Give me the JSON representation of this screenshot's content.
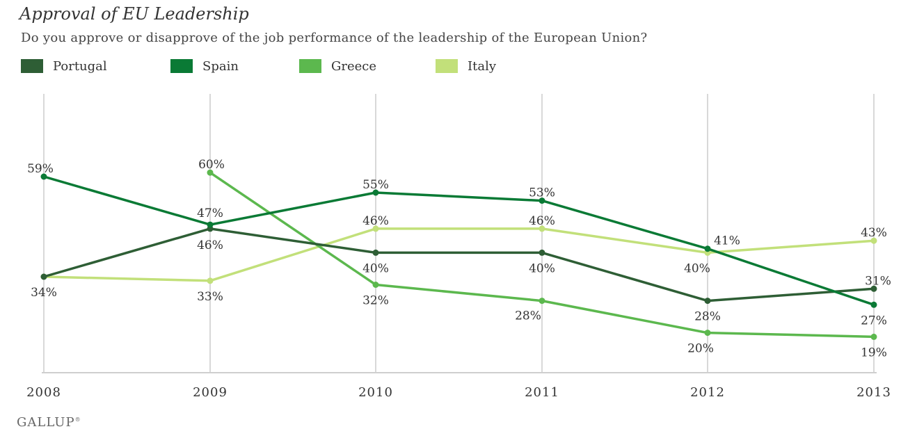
{
  "title": "Approval of EU Leadership",
  "subtitle": "Do you approve or disapprove of the job performance of the leadership of the European Union?",
  "source_logo": "GALLUP",
  "chart_data": {
    "type": "line",
    "title": "Approval of EU Leadership",
    "x": [
      "2008",
      "2009",
      "2010",
      "2011",
      "2012",
      "2013"
    ],
    "ylim": [
      10,
      70
    ],
    "grid": "vertical",
    "legend_position": "top-left",
    "series": [
      {
        "name": "Portugal",
        "color": "#2e5e35",
        "values": [
          34,
          46,
          40,
          40,
          28,
          31
        ]
      },
      {
        "name": "Spain",
        "color": "#0a7a35",
        "values": [
          59,
          47,
          55,
          53,
          41,
          27
        ]
      },
      {
        "name": "Greece",
        "color": "#5cb84e",
        "values": [
          null,
          60,
          32,
          28,
          20,
          19
        ]
      },
      {
        "name": "Italy",
        "color": "#c2e07a",
        "values": [
          34,
          33,
          46,
          46,
          40,
          43
        ]
      }
    ],
    "data_labels": [
      {
        "text": "59%",
        "series": "Spain",
        "x": "2008"
      },
      {
        "text": "34%",
        "series": "Italy",
        "x": "2008"
      },
      {
        "text": "60%",
        "series": "Greece",
        "x": "2009"
      },
      {
        "text": "47%",
        "series": "Spain",
        "x": "2009"
      },
      {
        "text": "46%",
        "series": "Portugal",
        "x": "2009"
      },
      {
        "text": "33%",
        "series": "Italy",
        "x": "2009"
      },
      {
        "text": "55%",
        "series": "Spain",
        "x": "2010"
      },
      {
        "text": "46%",
        "series": "Italy",
        "x": "2010"
      },
      {
        "text": "40%",
        "series": "Portugal",
        "x": "2010"
      },
      {
        "text": "32%",
        "series": "Greece",
        "x": "2010"
      },
      {
        "text": "53%",
        "series": "Spain",
        "x": "2011"
      },
      {
        "text": "46%",
        "series": "Italy",
        "x": "2011"
      },
      {
        "text": "40%",
        "series": "Portugal",
        "x": "2011"
      },
      {
        "text": "28%",
        "series": "Greece",
        "x": "2011"
      },
      {
        "text": "41%",
        "series": "Spain",
        "x": "2012"
      },
      {
        "text": "40%",
        "series": "Italy",
        "x": "2012"
      },
      {
        "text": "28%",
        "series": "Portugal",
        "x": "2012"
      },
      {
        "text": "20%",
        "series": "Greece",
        "x": "2012"
      },
      {
        "text": "43%",
        "series": "Italy",
        "x": "2013"
      },
      {
        "text": "31%",
        "series": "Portugal",
        "x": "2013"
      },
      {
        "text": "27%",
        "series": "Spain",
        "x": "2013"
      },
      {
        "text": "19%",
        "series": "Greece",
        "x": "2013"
      }
    ]
  }
}
